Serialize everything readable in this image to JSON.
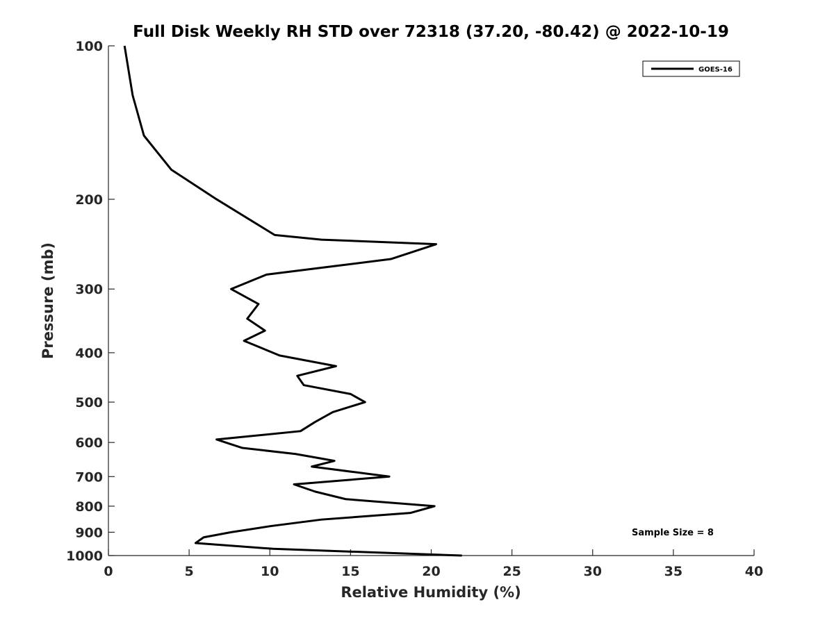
{
  "chart_data": {
    "type": "line",
    "title": "Full Disk Weekly RH STD over 72318 (37.20, -80.42) @ 2022-10-19",
    "xlabel": "Relative Humidity (%)",
    "ylabel": "Pressure (mb)",
    "xlim": [
      0,
      40
    ],
    "ylim": [
      100,
      1000
    ],
    "yscale": "log",
    "yreversed": true,
    "grid": false,
    "legend_position": "top-right",
    "x_ticks": [
      "0",
      "5",
      "10",
      "15",
      "20",
      "25",
      "30",
      "35",
      "40"
    ],
    "y_ticks": [
      "100",
      "200",
      "300",
      "400",
      "500",
      "600",
      "700",
      "800",
      "900",
      "1000"
    ],
    "annotation": "Sample Size = 8",
    "colors": {
      "line": "#000000",
      "axis": "#262626"
    },
    "series": [
      {
        "name": "GOES-16",
        "points": [
          [
            1.0,
            100
          ],
          [
            1.5,
            125
          ],
          [
            2.2,
            150
          ],
          [
            3.9,
            175
          ],
          [
            6.7,
            200
          ],
          [
            10.3,
            235
          ],
          [
            13.2,
            240
          ],
          [
            20.3,
            245
          ],
          [
            17.5,
            262
          ],
          [
            9.8,
            281
          ],
          [
            7.6,
            300
          ],
          [
            9.3,
            321
          ],
          [
            8.6,
            343
          ],
          [
            9.7,
            362
          ],
          [
            8.4,
            379
          ],
          [
            10.6,
            405
          ],
          [
            14.1,
            425
          ],
          [
            11.7,
            444
          ],
          [
            12.1,
            463
          ],
          [
            15.0,
            482
          ],
          [
            15.9,
            500
          ],
          [
            13.9,
            523
          ],
          [
            12.8,
            547
          ],
          [
            11.9,
            570
          ],
          [
            6.7,
            592
          ],
          [
            8.3,
            615
          ],
          [
            11.6,
            632
          ],
          [
            14.0,
            652
          ],
          [
            12.6,
            669
          ],
          [
            17.4,
            700
          ],
          [
            11.5,
            725
          ],
          [
            12.8,
            749
          ],
          [
            14.7,
            775
          ],
          [
            20.2,
            800
          ],
          [
            18.7,
            825
          ],
          [
            13.2,
            850
          ],
          [
            10.1,
            875
          ],
          [
            7.6,
            900
          ],
          [
            5.9,
            921
          ],
          [
            5.4,
            945
          ],
          [
            10.2,
            970
          ],
          [
            21.9,
            1000
          ]
        ]
      }
    ]
  }
}
